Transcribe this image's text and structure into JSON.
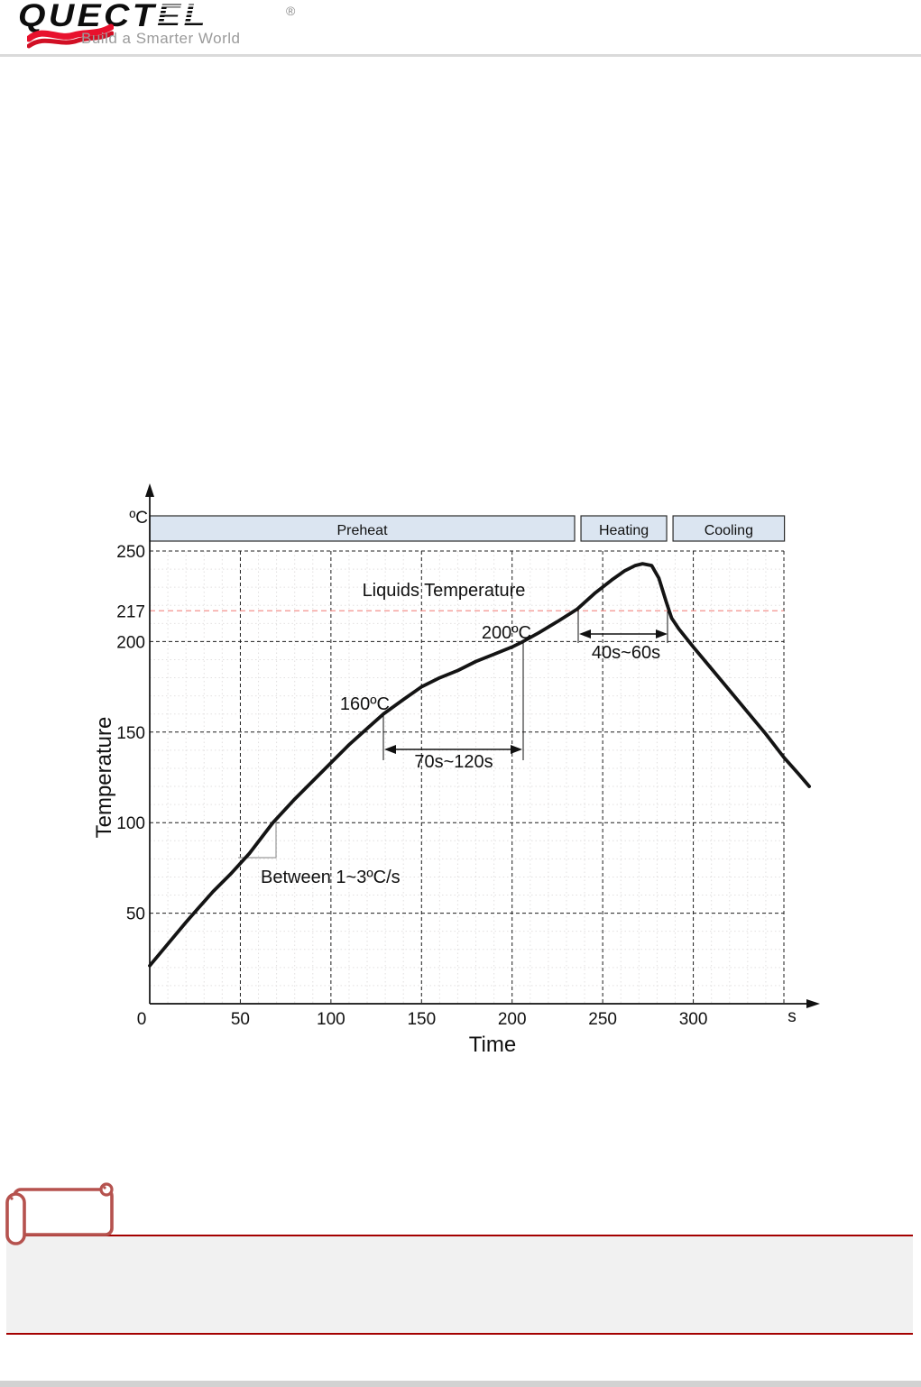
{
  "header": {
    "logo_main": "QUECT",
    "logo_stripe": "EL",
    "logo_reg": "®",
    "tagline": "Build a Smarter World"
  },
  "chart_data": {
    "type": "line",
    "title": "",
    "xlabel": "Time",
    "ylabel": "Temperature",
    "x_unit": "s",
    "y_unit": "ºC",
    "xlim": [
      0,
      350
    ],
    "ylim": [
      0,
      250
    ],
    "grid": "on",
    "x_ticks": [
      0,
      50,
      100,
      150,
      200,
      250,
      300
    ],
    "y_ticks": [
      50,
      100,
      150,
      200,
      250
    ],
    "liquidus_line": {
      "value": 217,
      "label": "Liquids Temperature",
      "color": "#f4938f"
    },
    "phases": [
      {
        "label": "Preheat",
        "t_start": 0,
        "t_end": 234.5
      },
      {
        "label": "Heating",
        "t_start": 238,
        "t_end": 285.3
      },
      {
        "label": "Cooling",
        "t_start": 288.8,
        "t_end": 350.3
      }
    ],
    "series": [
      {
        "name": "reflow-temperature-profile",
        "points": [
          [
            0,
            21
          ],
          [
            10,
            33
          ],
          [
            20,
            45
          ],
          [
            27,
            53
          ],
          [
            35,
            62
          ],
          [
            45,
            72
          ],
          [
            55,
            83
          ],
          [
            68,
            100
          ],
          [
            80,
            113
          ],
          [
            90,
            123
          ],
          [
            100,
            133
          ],
          [
            110,
            143
          ],
          [
            120,
            152
          ],
          [
            129,
            160
          ],
          [
            140,
            168
          ],
          [
            150,
            175
          ],
          [
            160,
            180
          ],
          [
            170,
            184
          ],
          [
            180,
            189
          ],
          [
            190,
            193
          ],
          [
            200,
            197
          ],
          [
            206,
            200
          ],
          [
            215,
            205
          ],
          [
            225,
            211
          ],
          [
            236,
            218
          ],
          [
            246,
            227
          ],
          [
            255,
            234
          ],
          [
            262,
            239
          ],
          [
            268,
            242
          ],
          [
            272,
            243
          ],
          [
            277,
            242
          ],
          [
            281,
            235
          ],
          [
            285,
            222
          ],
          [
            288,
            213
          ],
          [
            292,
            207
          ],
          [
            300,
            197
          ],
          [
            310,
            185
          ],
          [
            320,
            173
          ],
          [
            330,
            161
          ],
          [
            340,
            149
          ],
          [
            350,
            136
          ],
          [
            358,
            127
          ],
          [
            364,
            120
          ]
        ]
      }
    ],
    "annotations": {
      "temp_160": "160ºC",
      "temp_200": "200ºC",
      "soak_time": "70s~120s",
      "reflow_time": "40s~60s",
      "ramp_rate": "Between 1~3ºC/s"
    }
  },
  "colors": {
    "curve": "#141414",
    "liquidus_dashed": "#f4938f",
    "phase_band_fill": "#dbe5f1",
    "note_rule_red": "#a40000",
    "note_scroll_red": "#b5524e",
    "logo_swoosh_red": "#e8112d",
    "footer_bar_gray": "#d2d2d2"
  }
}
